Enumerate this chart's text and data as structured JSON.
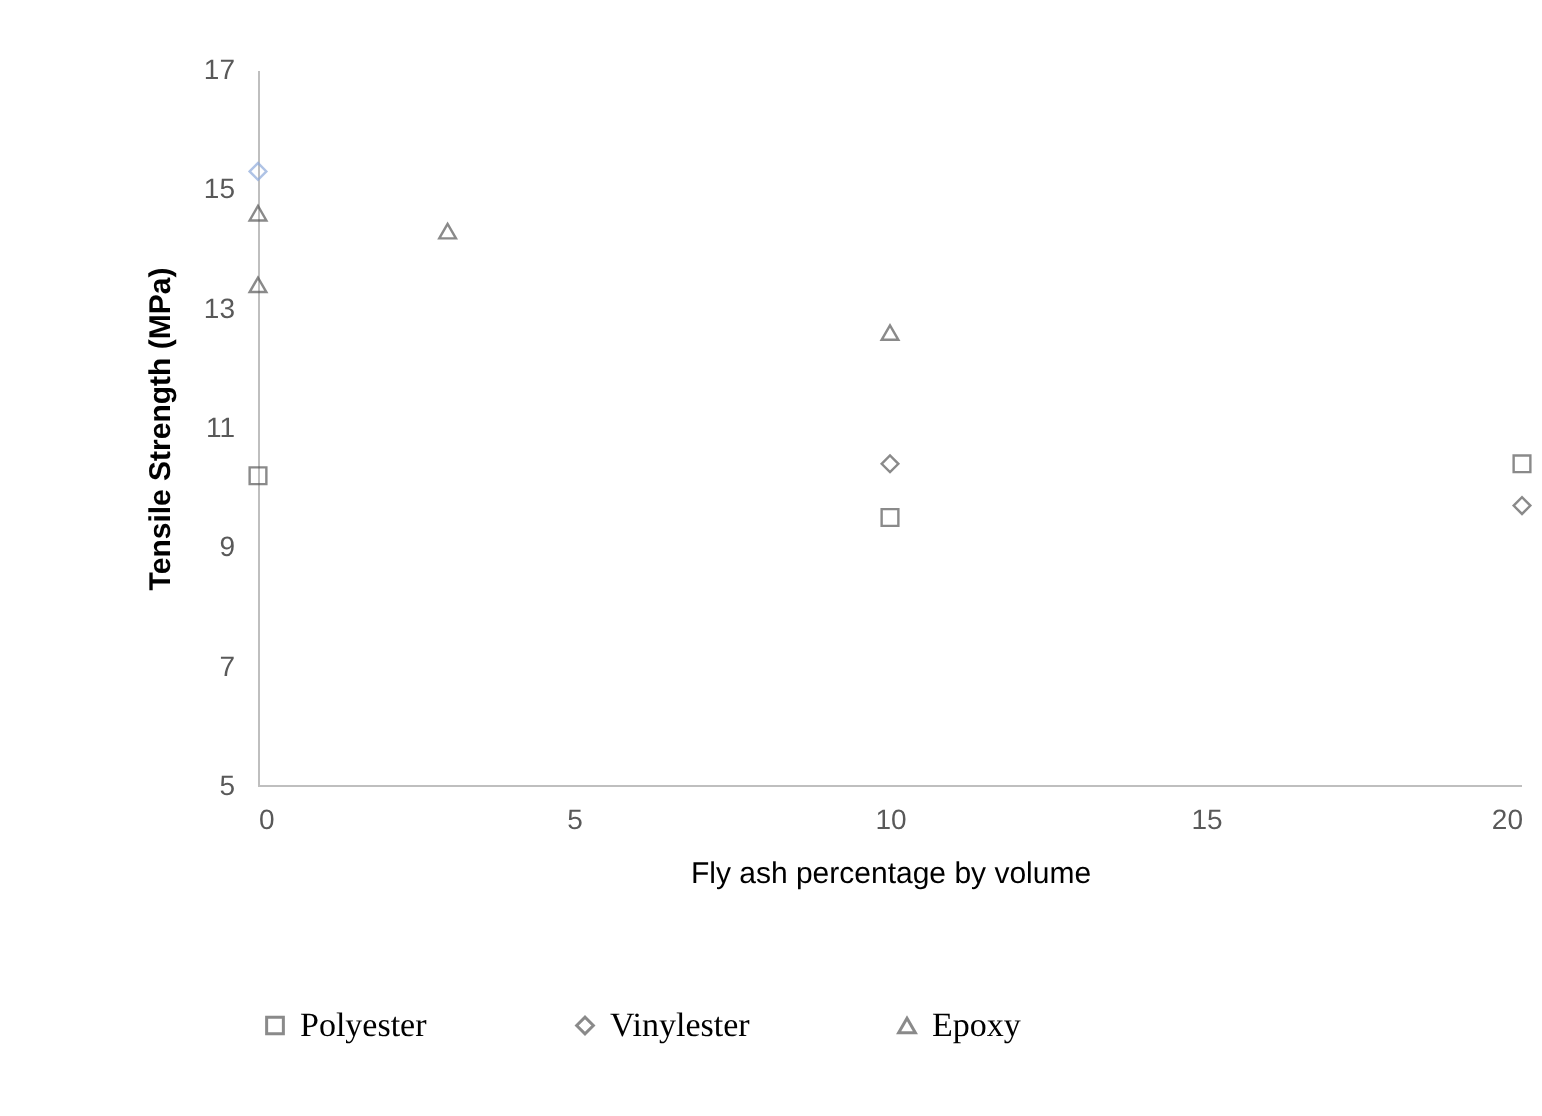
{
  "chart_data": {
    "type": "scatter",
    "xlabel": "Fly ash percentage by volume",
    "ylabel": "Tensile Strength (MPa)",
    "xlim": [
      0,
      20
    ],
    "xticks": [
      0,
      5,
      10,
      15,
      20
    ],
    "ylim": [
      5,
      17
    ],
    "yticks": [
      5,
      7,
      9,
      11,
      13,
      15,
      17
    ],
    "grid": false,
    "legend": "bottom",
    "series": [
      {
        "name": "Polyester",
        "color": "#595959",
        "marker": "square",
        "x": [
          0,
          10,
          20
        ],
        "values": [
          10.2,
          9.5,
          10.4
        ]
      },
      {
        "name": "Vinylester",
        "color": "#595959",
        "colors": [
          "#8eaadb",
          "#595959",
          "#595959"
        ],
        "marker": "diamond",
        "x": [
          0,
          10,
          20
        ],
        "values": [
          15.3,
          10.4,
          9.7
        ]
      },
      {
        "name": "Epoxy",
        "color": "#595959",
        "marker": "triangle",
        "x": [
          0,
          0,
          3,
          10
        ],
        "values": [
          14.6,
          13.4,
          14.3,
          12.6
        ]
      }
    ]
  }
}
